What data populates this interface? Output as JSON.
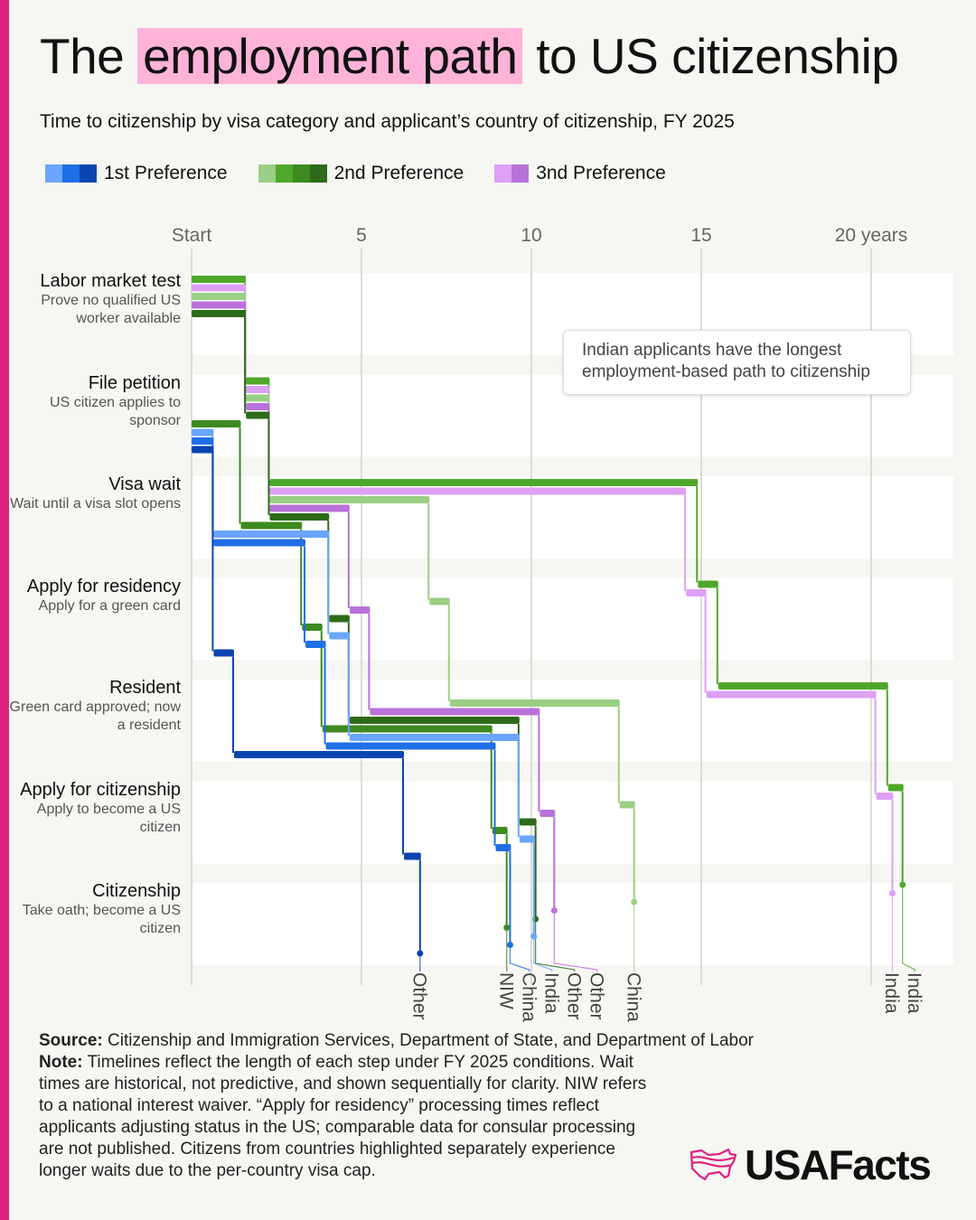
{
  "header": {
    "title_before": "The",
    "title_highlight": "employment path",
    "title_after": "to US citizenship",
    "subtitle": "Time to citizenship by visa category and applicant’s country of citizenship, FY 2025"
  },
  "legend": [
    {
      "label": "1st Preference",
      "colors": [
        "#6aa5ff",
        "#1f6fe6",
        "#0a45b0"
      ]
    },
    {
      "label": "2nd Preference",
      "colors": [
        "#9bcf85",
        "#4fa82a",
        "#3d8a20",
        "#2d6a19"
      ]
    },
    {
      "label": "3nd Preference",
      "colors": [
        "#dda0f5",
        "#b872d9"
      ]
    }
  ],
  "annotation": "Indian applicants have the longest employment-based path to citizenship",
  "footer": {
    "source_label": "Source:",
    "source": "Citizenship and Immigration Services, Department of State, and Department of Labor",
    "note_label": "Note:",
    "note": "Timelines reflect the length of each step under FY 2025 conditions. Wait times are historical, not predictive, and shown sequentially for clarity. NIW refers to a national interest waiver. “Apply for residency” processing times reflect applicants adjusting status in the US; comparable data for consular processing are not published. Citizens from countries highlighted separately experience longer waits due to the per-country visa cap."
  },
  "logo": {
    "text": "USAFacts",
    "color": "#e0207f"
  },
  "chart_data": {
    "type": "step-line",
    "x_ticks": [
      {
        "value": 0,
        "label": "Start"
      },
      {
        "value": 5,
        "label": "5"
      },
      {
        "value": 10,
        "label": "10"
      },
      {
        "value": 15,
        "label": "15"
      },
      {
        "value": 20,
        "label": "20 years"
      }
    ],
    "xlim": [
      0,
      22.4
    ],
    "grid": true,
    "legend_position": "top-left",
    "steps": [
      {
        "title": "Labor market test",
        "desc": "Prove no qualified US worker available"
      },
      {
        "title": "File petition",
        "desc": "US citizen applies to sponsor"
      },
      {
        "title": "Visa wait",
        "desc": "Wait until a visa slot opens"
      },
      {
        "title": "Apply for residency",
        "desc": "Apply for a green card"
      },
      {
        "title": "Resident",
        "desc": "Green card approved; now a resident"
      },
      {
        "title": "Apply for citizenship",
        "desc": "Apply to become a US citizen"
      },
      {
        "title": "Citizenship",
        "desc": "Take oath; become a US citizen"
      }
    ],
    "series_note": "durations in years for steps: labor market test, file petition, visa wait, apply for residency, resident, apply for citizenship",
    "series": [
      {
        "name": "India",
        "group": "2nd Preference",
        "color": "#4fa82a",
        "durations": [
          1.6,
          0.7,
          12.6,
          0.6,
          5.0,
          0.45
        ]
      },
      {
        "name": "India",
        "group": "3nd Preference",
        "color": "#dda0f5",
        "durations": [
          1.6,
          0.7,
          12.25,
          0.6,
          5.0,
          0.5
        ]
      },
      {
        "name": "China",
        "group": "2nd Preference",
        "color": "#9bcf85",
        "durations": [
          1.6,
          0.7,
          4.7,
          0.6,
          5.0,
          0.45
        ]
      },
      {
        "name": "Other",
        "group": "3nd Preference",
        "color": "#b872d9",
        "durations": [
          1.6,
          0.7,
          2.35,
          0.6,
          5.0,
          0.45
        ]
      },
      {
        "name": "Other",
        "group": "2nd Preference",
        "color": "#2d6a19",
        "durations": [
          1.6,
          0.7,
          1.75,
          0.6,
          5.0,
          0.5
        ]
      },
      {
        "name": "NIW",
        "group": "2nd Preference",
        "color": "#3d8a20",
        "durations": [
          0,
          1.45,
          1.8,
          0.6,
          5.0,
          0.45
        ]
      },
      {
        "name": "India",
        "group": "1st Preference",
        "color": "#6aa5ff",
        "durations": [
          0,
          0.65,
          3.4,
          0.6,
          5.0,
          0.45
        ]
      },
      {
        "name": "China",
        "group": "1st Preference",
        "color": "#1f6fe6",
        "durations": [
          0,
          0.65,
          2.7,
          0.6,
          5.0,
          0.45
        ]
      },
      {
        "name": "Other",
        "group": "1st Preference",
        "color": "#0a45b0",
        "durations": [
          0,
          0.65,
          0,
          0.6,
          5.0,
          0.5
        ]
      }
    ]
  }
}
